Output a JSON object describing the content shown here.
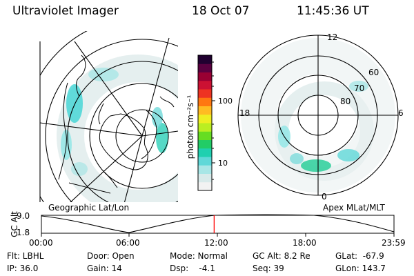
{
  "header": {
    "instrument": "Ultraviolet Imager",
    "date": "18 Oct 07",
    "time": "11:45:36 UT"
  },
  "left_map": {
    "label": "Geographic Lat/Lon"
  },
  "right_map": {
    "label": "Apex MLat/MLT",
    "mlt_labels": [
      "12",
      "18",
      "6",
      "0"
    ],
    "lat_labels": [
      "60",
      "70",
      "80"
    ]
  },
  "colorbar": {
    "unit_label": "photon cm⁻²s⁻¹",
    "tick_labels": [
      "100",
      "10"
    ],
    "scale": "log",
    "colors": [
      "#f2f2f2",
      "#d8eaea",
      "#a8e6e6",
      "#5fd8d8",
      "#1fd0b0",
      "#22cc66",
      "#66dd22",
      "#bbee22",
      "#eeee22",
      "#ffbb22",
      "#ff7711",
      "#ee3322",
      "#cc1133",
      "#990033",
      "#5a0040",
      "#200030"
    ]
  },
  "altitude_strip": {
    "axis_title": "GC Alt",
    "y_ticks": [
      "9.0",
      "1.8"
    ],
    "x_ticks": [
      "00:00",
      "06:00",
      "12:00",
      "18:00",
      "23:59"
    ],
    "current_marker_time": "11:45",
    "marker_color": "#ff0000"
  },
  "info": {
    "filter": "Flt: LBHL",
    "ip": "IP: 36.0",
    "door": "Door: Open",
    "gain": "Gain: 14",
    "mode": "Mode: Normal",
    "dsp": "Dsp:    -4.1",
    "gc_alt": "GC Alt: 8.2 Re",
    "seq": "Seq: 39",
    "glat": "GLat:  -67.9",
    "glon": "GLon: 143.7"
  }
}
